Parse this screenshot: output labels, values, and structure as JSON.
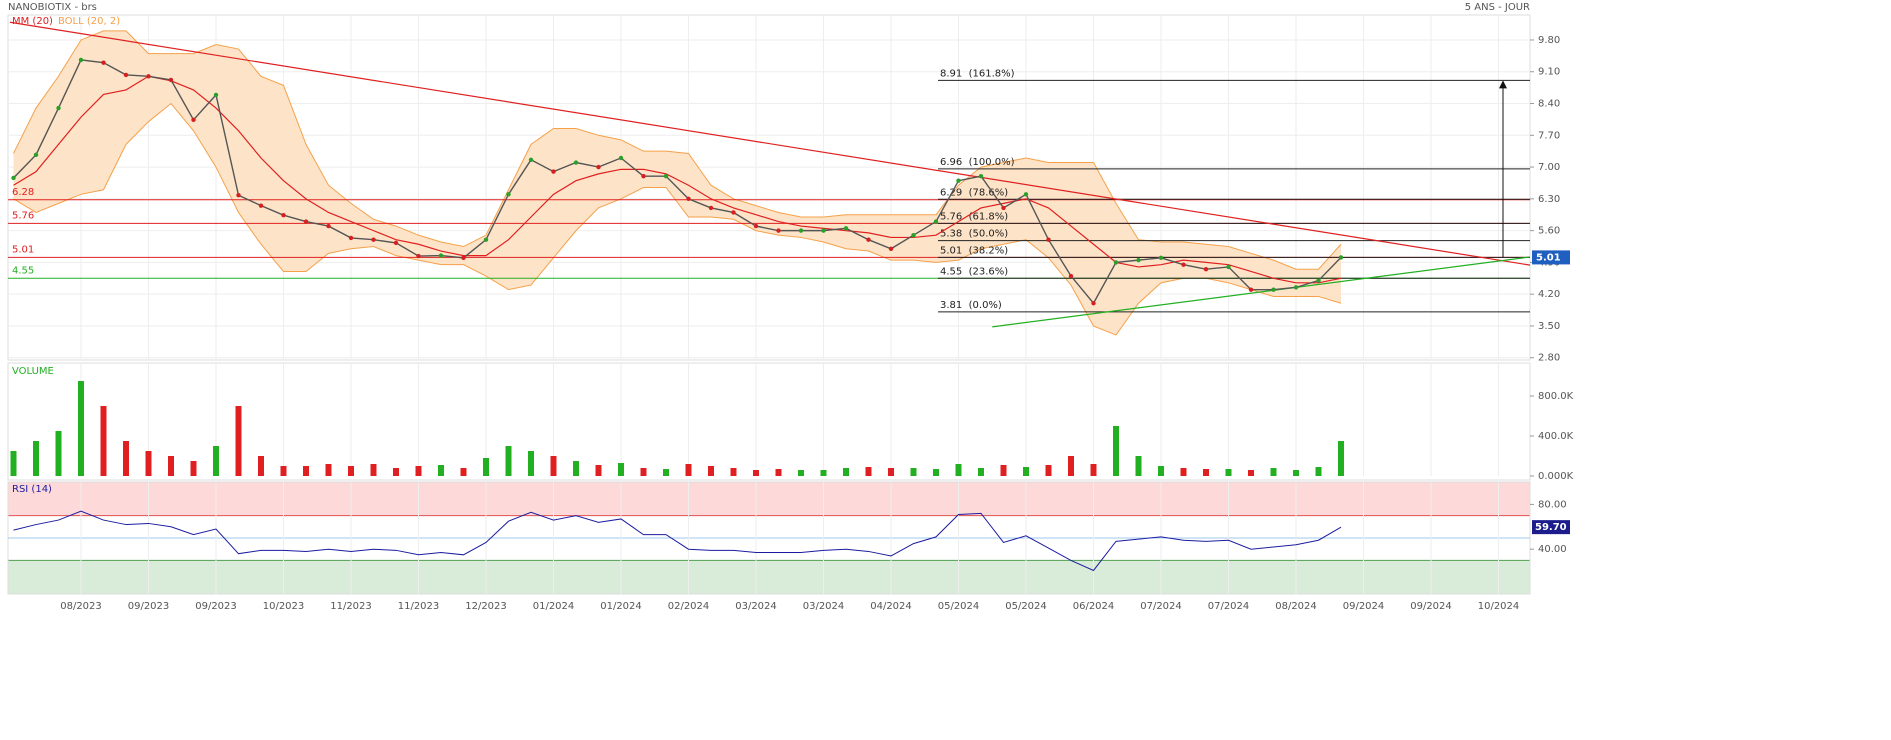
{
  "chart_data": [
    {
      "type": "line",
      "title": "NANOBIOTIX - brs",
      "subtitle": "5 ANS - JOUR",
      "color": "#555555",
      "ylim": [
        2.75,
        10.35
      ],
      "yticks": [
        {
          "value": 2.8,
          "label": "2.80"
        },
        {
          "value": 3.5,
          "label": "3.50"
        },
        {
          "value": 4.2,
          "label": "4.20"
        },
        {
          "value": 4.9,
          "label": "4.90"
        },
        {
          "value": 5.6,
          "label": "5.60"
        },
        {
          "value": 6.3,
          "label": "6.30"
        },
        {
          "value": 7.0,
          "label": "7.00"
        },
        {
          "value": 7.7,
          "label": "7.70"
        },
        {
          "value": 8.4,
          "label": "8.40"
        },
        {
          "value": 9.1,
          "label": "9.10"
        },
        {
          "value": 9.8,
          "label": "9.80"
        }
      ],
      "grid": true,
      "values": [
        6.76,
        7.27,
        8.3,
        9.36,
        9.3,
        9.03,
        9.0,
        8.92,
        8.04,
        8.59,
        6.38,
        6.15,
        5.94,
        5.8,
        5.7,
        5.44,
        5.4,
        5.33,
        5.04,
        5.05,
        5.0,
        5.4,
        6.4,
        7.16,
        6.9,
        7.1,
        7.0,
        7.2,
        6.8,
        6.8,
        6.3,
        6.1,
        6.0,
        5.7,
        5.6,
        5.6,
        5.6,
        5.65,
        5.4,
        5.2,
        5.5,
        5.8,
        6.7,
        6.8,
        6.1,
        6.4,
        5.4,
        4.6,
        4.0,
        4.9,
        4.95,
        5.0,
        4.85,
        4.75,
        4.8,
        4.3,
        4.3,
        4.35,
        4.5,
        5.01,
        null,
        null,
        null,
        null,
        null,
        null,
        null,
        null
      ],
      "series": [
        {
          "name": "MM (20)",
          "color": "#e02020",
          "values": [
            6.6,
            6.9,
            7.5,
            8.1,
            8.6,
            8.7,
            9.0,
            8.9,
            8.7,
            8.3,
            7.8,
            7.2,
            6.7,
            6.3,
            6.0,
            5.8,
            5.6,
            5.4,
            5.3,
            5.15,
            5.05,
            5.05,
            5.4,
            5.9,
            6.4,
            6.7,
            6.85,
            6.95,
            6.95,
            6.85,
            6.6,
            6.3,
            6.1,
            5.95,
            5.8,
            5.7,
            5.65,
            5.6,
            5.55,
            5.45,
            5.45,
            5.5,
            5.8,
            6.1,
            6.2,
            6.3,
            6.1,
            5.7,
            5.3,
            4.9,
            4.8,
            4.85,
            4.95,
            4.9,
            4.85,
            4.7,
            4.55,
            4.45,
            4.45,
            4.55,
            null,
            null,
            null,
            null,
            null,
            null,
            null,
            null
          ]
        },
        {
          "name": "BOLL (20, 2)",
          "color": "#f5a04a",
          "fill": "#fde4c8",
          "values": [
            7.3,
            8.3,
            9.0,
            9.8,
            10.0,
            10.0,
            9.5,
            9.5,
            9.5,
            9.7,
            9.6,
            9.0,
            8.8,
            7.5,
            6.6,
            6.2,
            5.85,
            5.7,
            5.5,
            5.35,
            5.25,
            5.5,
            6.5,
            7.5,
            7.85,
            7.85,
            7.7,
            7.6,
            7.35,
            7.35,
            7.3,
            6.6,
            6.3,
            6.15,
            6.0,
            5.9,
            5.9,
            5.95,
            5.95,
            5.95,
            5.95,
            5.95,
            6.6,
            7.0,
            7.1,
            7.2,
            7.1,
            7.1,
            7.1,
            6.2,
            5.4,
            5.35,
            5.35,
            5.3,
            5.25,
            5.1,
            4.95,
            4.75,
            4.75,
            5.3,
            null,
            null,
            null,
            null,
            null,
            null,
            null,
            null
          ],
          "lower": [
            6.3,
            6.0,
            6.2,
            6.4,
            6.5,
            7.5,
            8.0,
            8.4,
            7.8,
            7.0,
            6.0,
            5.3,
            4.7,
            4.7,
            5.1,
            5.2,
            5.25,
            5.05,
            4.95,
            4.85,
            4.85,
            4.6,
            4.3,
            4.4,
            5.0,
            5.6,
            6.1,
            6.3,
            6.55,
            6.55,
            5.9,
            5.9,
            5.85,
            5.6,
            5.5,
            5.45,
            5.35,
            5.2,
            5.15,
            4.95,
            4.95,
            4.9,
            4.95,
            5.2,
            5.3,
            5.4,
            5.0,
            4.4,
            3.5,
            3.3,
            4.0,
            4.45,
            4.55,
            4.55,
            4.45,
            4.3,
            4.15,
            4.15,
            4.15,
            4.0,
            null,
            null,
            null,
            null,
            null,
            null,
            null,
            null
          ]
        }
      ],
      "levels": [
        6.28,
        5.76,
        5.01,
        4.55
      ],
      "level_colors": [
        "#e02020",
        "#e02020",
        "#e02020",
        "#22b022"
      ],
      "fibonacci": [
        {
          "value": 8.91,
          "label": "8.91  (161.8%)"
        },
        {
          "value": 6.96,
          "label": "6.96  (100.0%)"
        },
        {
          "value": 6.29,
          "label": "6.29  (78.6%)"
        },
        {
          "value": 5.76,
          "label": "5.76  (61.8%)"
        },
        {
          "value": 5.38,
          "label": "5.38  (50.0%)"
        },
        {
          "value": 5.01,
          "label": "5.01  (38.2%)"
        },
        {
          "value": 4.55,
          "label": "4.55  (23.6%)"
        },
        {
          "value": 3.81,
          "label": "3.81  (0.0%)"
        }
      ],
      "trendlines": [
        {
          "color": "#e02020",
          "x": [
            -0.16,
            67.4
          ],
          "y": [
            10.19,
            4.84
          ]
        },
        {
          "color": "#22b022",
          "x": [
            43.5,
            67.4
          ],
          "y": [
            3.48,
            5.02
          ]
        }
      ],
      "arrow": {
        "x": 66.2,
        "y": [
          5.01,
          8.91
        ]
      },
      "last": 5.01,
      "last_color": "#1f5fbf"
    },
    {
      "type": "bar",
      "title": "VOLUME",
      "title_color": "#22b022",
      "ylim": [
        0,
        1130000
      ],
      "yticks": [
        {
          "value": 0,
          "label": "0.000K"
        },
        {
          "value": 400000,
          "label": "400.0K"
        },
        {
          "value": 800000,
          "label": "800.0K"
        }
      ],
      "up_color": "#22b022",
      "down_color": "#e02020",
      "values": [
        250000,
        350000,
        450000,
        950000,
        700000,
        350000,
        250000,
        200000,
        150000,
        300000,
        700000,
        200000,
        100000,
        100000,
        120000,
        100000,
        120000,
        80000,
        100000,
        110000,
        80000,
        180000,
        300000,
        250000,
        200000,
        150000,
        110000,
        130000,
        80000,
        70000,
        120000,
        100000,
        80000,
        60000,
        70000,
        60000,
        60000,
        80000,
        90000,
        80000,
        80000,
        70000,
        120000,
        80000,
        110000,
        90000,
        110000,
        200000,
        120000,
        500000,
        200000,
        100000,
        80000,
        70000,
        70000,
        60000,
        80000,
        60000,
        90000,
        350000,
        null,
        null,
        null,
        null,
        null,
        null,
        null,
        null
      ]
    },
    {
      "type": "line",
      "title": "RSI (14)",
      "color": "#1c1ca0",
      "ylim": [
        0,
        100
      ],
      "yticks": [
        {
          "value": 40,
          "label": "40.00"
        },
        {
          "value": 80,
          "label": "80.00"
        }
      ],
      "zones": [
        {
          "from": 70,
          "to": 100,
          "color": "#fdd9d9",
          "edge": "#e05050"
        },
        {
          "from": 0,
          "to": 30,
          "color": "#d9ecd9",
          "edge": "#50a050"
        }
      ],
      "midline": 50,
      "last": {
        "value": 59.7,
        "label": "59.70"
      },
      "values": [
        57,
        62,
        66,
        74,
        66,
        62,
        63,
        60,
        53,
        58,
        36,
        39,
        39,
        38,
        40,
        38,
        40,
        39,
        35,
        37,
        35,
        46,
        65,
        73,
        66,
        70,
        64,
        67,
        53,
        53,
        40,
        39,
        39,
        37,
        37,
        37,
        39,
        40,
        38,
        34,
        45,
        51,
        71,
        72,
        46,
        52,
        41,
        30,
        21,
        47,
        49,
        51,
        48,
        47,
        48,
        40,
        42,
        44,
        48,
        59.7,
        null,
        null,
        null,
        null,
        null,
        null,
        null,
        null
      ],
      "categories": [
        null,
        null,
        null,
        "08/2023",
        null,
        null,
        "09/2023",
        null,
        null,
        "09/2023",
        null,
        null,
        "10/2023",
        null,
        null,
        "11/2023",
        null,
        null,
        "11/2023",
        null,
        null,
        "12/2023",
        null,
        null,
        "01/2024",
        null,
        null,
        "01/2024",
        null,
        null,
        "02/2024",
        null,
        null,
        "03/2024",
        null,
        null,
        "03/2024",
        null,
        null,
        "04/2024",
        null,
        null,
        "05/2024",
        null,
        null,
        "05/2024",
        null,
        null,
        "06/2024",
        null,
        null,
        "07/2024",
        null,
        null,
        "07/2024",
        null,
        null,
        "08/2024",
        null,
        null,
        "09/2024",
        null,
        null,
        "09/2024",
        null,
        null,
        "10/2024",
        null
      ]
    }
  ]
}
